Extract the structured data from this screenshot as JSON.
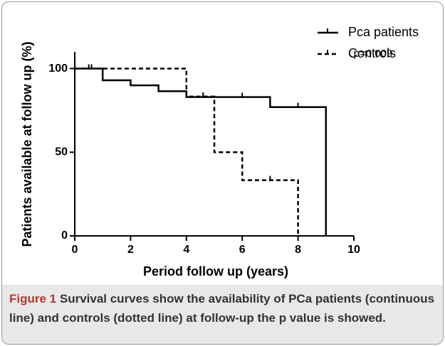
{
  "chart_data": {
    "type": "line",
    "step": true,
    "ylabel": "Patients available at follow up (%)",
    "xlabel": "Period follow up (years)",
    "annotation": "p=0.009",
    "xlim": [
      0,
      10
    ],
    "xticks": [
      0,
      2,
      4,
      6,
      8,
      10
    ],
    "ylim": [
      0,
      110
    ],
    "yticks": [
      0,
      50,
      100
    ],
    "legend": "top-right",
    "series": [
      {
        "name": "Pca patients",
        "color": "#000000",
        "dashed": false,
        "x": [
          0,
          1,
          1,
          2,
          2,
          3,
          3,
          4,
          4,
          7,
          7,
          9,
          9
        ],
        "values": [
          100,
          100,
          93,
          93,
          90,
          90,
          86.5,
          86.5,
          83,
          83,
          77,
          77,
          0
        ],
        "censored_x": [
          0.6,
          6,
          8
        ],
        "censored_values": [
          100,
          83,
          77
        ]
      },
      {
        "name": "Controls",
        "color": "#000000",
        "dashed": true,
        "x": [
          0,
          4,
          4,
          5,
          5,
          6,
          6,
          8,
          8
        ],
        "values": [
          100,
          100,
          83.3,
          83.3,
          50,
          50,
          33.3,
          33.3,
          0
        ],
        "censored_x": [
          0.5,
          4.6,
          7
        ],
        "censored_values": [
          100,
          83.3,
          33.3
        ]
      }
    ]
  },
  "caption": {
    "label": "Figure 1",
    "text": "Survival curves show the availability of PCa patients (continuous line) and controls (dotted line) at follow-up the p value is showed."
  }
}
